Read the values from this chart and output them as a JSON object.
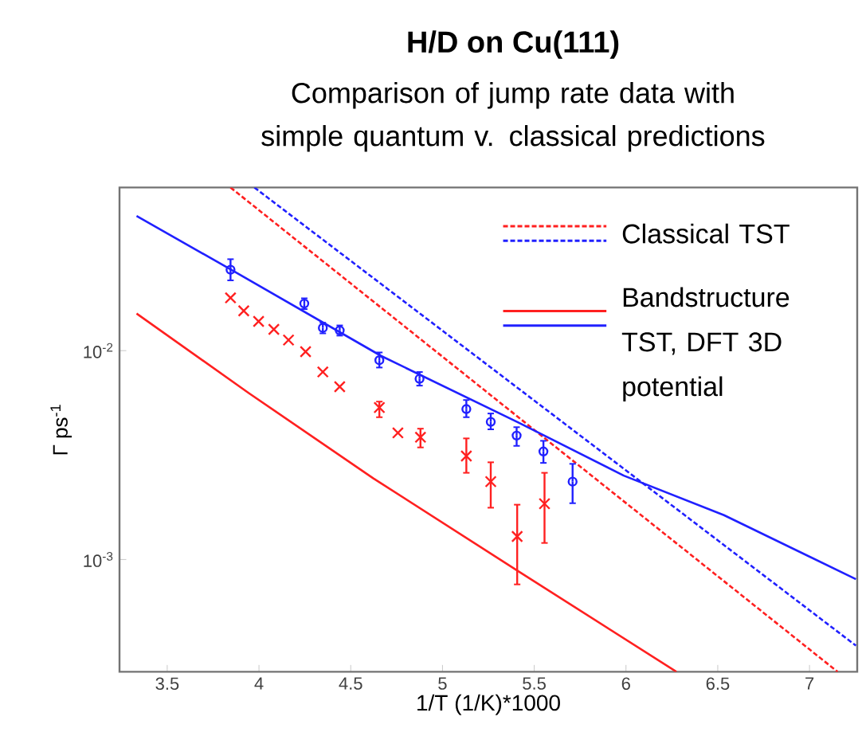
{
  "chart_data": {
    "type": "line",
    "title": "**H/D on Cu(111)**",
    "subtitle": "Comparison of jump rate data with simple quantum v. classical predictions",
    "xlabel": "1/T (1/K)*1000",
    "ylabel": "Γ ps$^{-1}$",
    "log": "y",
    "xlim": [
      3.24,
      7.26
    ],
    "ylim": [
      0.00029,
      0.0604
    ],
    "xticks": [
      3.5,
      4,
      4.5,
      5,
      5.5,
      6,
      6.5,
      7
    ],
    "yticks": [
      {
        "value": 0.001,
        "label": "10$^{-3}$"
      },
      {
        "value": 0.01,
        "label": "10$^{-2}$"
      }
    ],
    "grid": false,
    "legend": "top right",
    "series": [
      {
        "name": "Classical TST",
        "color": "#ff2020",
        "line_style": "dashed",
        "marker": "none",
        "x": [
          3.845,
          5.441,
          7.153
        ],
        "values": [
          0.0604,
          0.00459,
          0.00029
        ]
      },
      {
        "color": "#2020ff",
        "line_style": "dashed",
        "marker": "none",
        "x": [
          3.975,
          5.988,
          7.253
        ],
        "values": [
          0.0604,
          0.00272,
          0.000387
        ]
      },
      {
        "name": "Bandstructure TST, DFT 3D potential",
        "color": "#ff2020",
        "line_style": "solid",
        "marker": "none",
        "x": [
          3.333,
          3.946,
          4.622,
          5.413,
          6.275
        ],
        "values": [
          0.01506,
          0.00625,
          0.00245,
          0.000879,
          0.00029
        ]
      },
      {
        "color": "#2020ff",
        "line_style": "solid",
        "marker": "none",
        "x": [
          3.333,
          3.845,
          4.665,
          5.413,
          5.988,
          6.534,
          7.253
        ],
        "values": [
          0.0441,
          0.0245,
          0.00944,
          0.00453,
          0.00252,
          0.00163,
          0.000805
        ]
      },
      {
        "type": "scatter",
        "color": "#2020ff",
        "marker": "circle",
        "x": [
          3.845,
          4.247,
          4.348,
          4.44,
          4.656,
          4.875,
          5.13,
          5.263,
          5.404,
          5.55,
          5.709
        ],
        "values": [
          0.0244,
          0.0168,
          0.01285,
          0.0125,
          0.009,
          0.00733,
          0.00525,
          0.00456,
          0.00392,
          0.00329,
          0.00236
        ],
        "errors": [
          [
            0.0217,
            0.0274
          ],
          [
            0.0158,
            0.0178
          ],
          [
            0.0121,
            0.0136
          ],
          [
            0.0118,
            0.0132
          ],
          [
            0.0083,
            0.0098
          ],
          [
            0.0068,
            0.0079
          ],
          [
            0.0048,
            0.0058
          ],
          [
            0.0042,
            0.005
          ],
          [
            0.0035,
            0.0043
          ],
          [
            0.0029,
            0.0037
          ],
          [
            0.00186,
            0.00287
          ]
        ]
      },
      {
        "type": "scatter",
        "color": "#ff2020",
        "marker": "cross",
        "x": [
          3.845,
          3.917,
          3.998,
          4.081,
          4.161,
          4.254,
          4.348,
          4.44,
          4.656,
          4.757,
          4.88,
          5.13,
          5.263,
          5.407,
          5.556
        ],
        "values": [
          0.0179,
          0.0155,
          0.0138,
          0.01265,
          0.01124,
          0.00989,
          0.00791,
          0.00672,
          0.00534,
          0.00404,
          0.00385,
          0.00313,
          0.00236,
          0.00129,
          0.00185
        ],
        "errors": [
          null,
          null,
          null,
          null,
          null,
          null,
          null,
          null,
          [
            0.0048,
            0.0057
          ],
          null,
          [
            0.00344,
            0.00423
          ],
          [
            0.0026,
            0.0038
          ],
          [
            0.00177,
            0.00292
          ],
          [
            0.00076,
            0.00183
          ],
          [
            0.0012,
            0.0026
          ]
        ]
      }
    ]
  }
}
